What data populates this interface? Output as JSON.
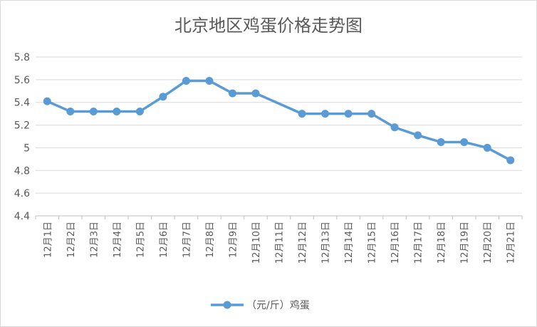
{
  "chart_data": {
    "type": "line",
    "title": "北京地区鸡蛋价格走势图",
    "categories": [
      "12月1日",
      "12月2日",
      "12月3日",
      "12月4日",
      "12月5日",
      "12月6日",
      "12月7日",
      "12月8日",
      "12月9日",
      "12月10日",
      "12月11日",
      "12月12日",
      "12月13日",
      "12月14日",
      "12月15日",
      "12月16日",
      "12月17日",
      "12月18日",
      "12月19日",
      "12月20日",
      "12月21日"
    ],
    "series": [
      {
        "name": "（元/斤）鸡蛋",
        "values": [
          5.41,
          5.32,
          5.32,
          5.32,
          5.32,
          5.45,
          5.59,
          5.59,
          5.48,
          5.48,
          null,
          5.3,
          5.3,
          5.3,
          5.3,
          5.18,
          5.11,
          5.05,
          5.05,
          5.0,
          4.89
        ]
      }
    ],
    "y_ticks": [
      "4.4",
      "4.6",
      "4.8",
      "5",
      "5.2",
      "5.4",
      "5.6",
      "5.8"
    ],
    "ylim": [
      4.4,
      5.8
    ],
    "grid": true,
    "legend_position": "bottom",
    "colors": {
      "line": "#5b9bd5",
      "grid": "#d9d9d9",
      "axis": "#bfbfbf",
      "text": "#595959"
    }
  }
}
